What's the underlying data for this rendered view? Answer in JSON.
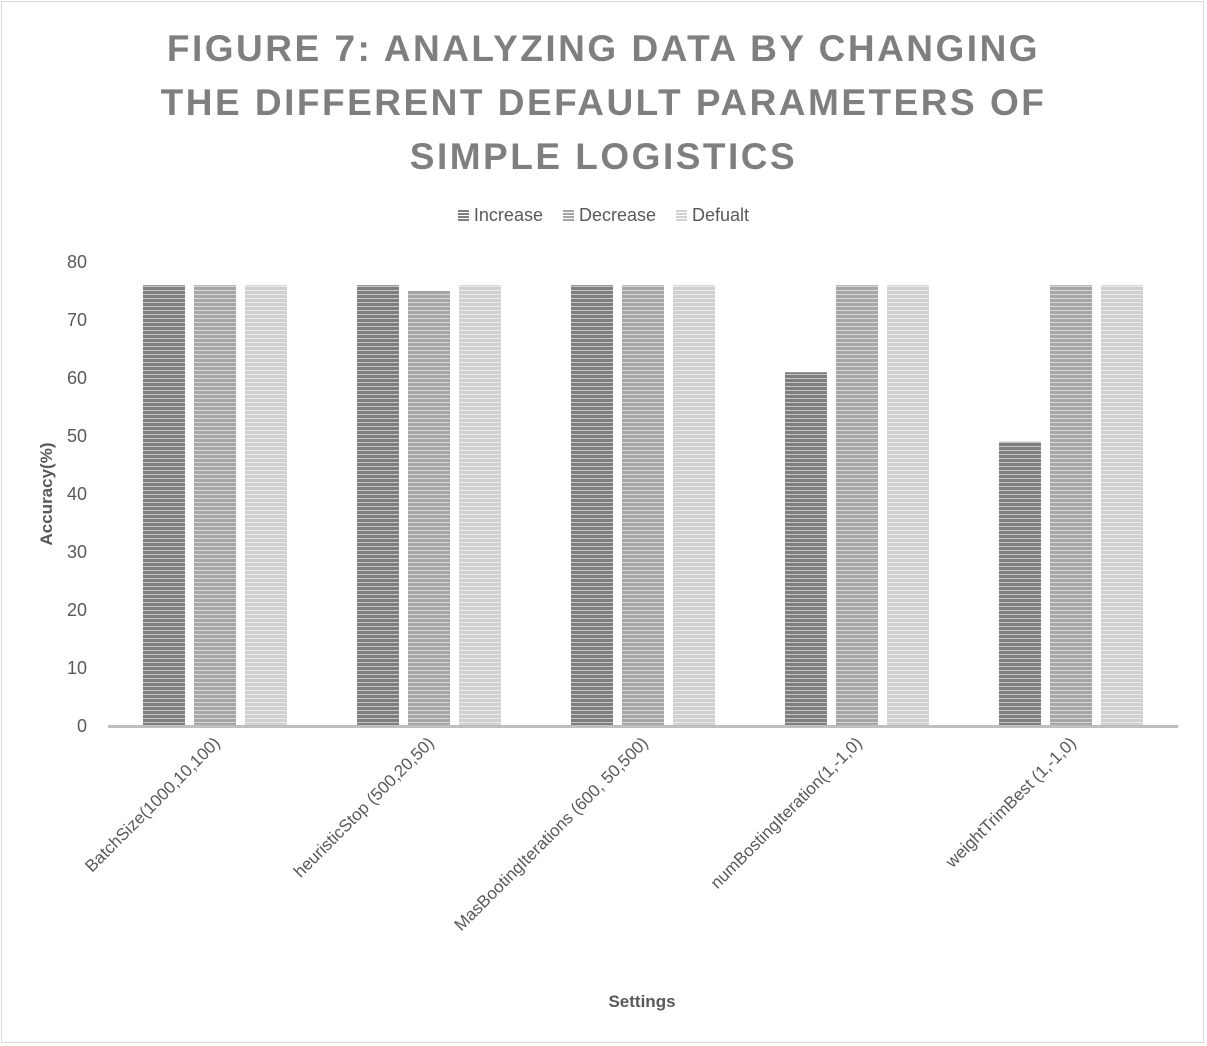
{
  "chart_data": {
    "type": "bar",
    "title": "FIGURE 7: ANALYZING DATA BY CHANGING THE DIFFERENT DEFAULT PARAMETERS OF SIMPLE LOGISTICS",
    "title_lines": [
      "FIGURE 7: ANALYZING DATA BY CHANGING",
      "THE DIFFERENT DEFAULT PARAMETERS OF",
      "SIMPLE LOGISTICS"
    ],
    "xlabel": "Settings",
    "ylabel": "Accuracy(%)",
    "ylim": [
      0,
      80
    ],
    "yticks": [
      0,
      10,
      20,
      30,
      40,
      50,
      60,
      70,
      80
    ],
    "grid": false,
    "legend_position": "top",
    "categories": [
      "BatchSize(1000,10,100)",
      "heuristicStop (500,20,50)",
      "MasBootingIterations (600, 50,500)",
      "numBostingIteration(1,-1,0)",
      "weightTrimBest (1,-1,0)"
    ],
    "series": [
      {
        "name": "Increase",
        "color": "#7f7f7f",
        "values": [
          76,
          76,
          76,
          61,
          49
        ]
      },
      {
        "name": "Decrease",
        "color": "#a6a6a6",
        "values": [
          76,
          75,
          76,
          76,
          76
        ]
      },
      {
        "name": "Defualt",
        "color": "#d0d0d0",
        "values": [
          76,
          76,
          76,
          76,
          76
        ]
      }
    ]
  }
}
